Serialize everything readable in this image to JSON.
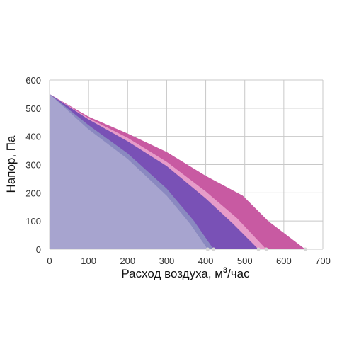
{
  "chart_data": {
    "type": "area",
    "xlabel": "Расход воздуха, м³/час",
    "xlabel_main": "Расход воздуха, м",
    "xlabel_sup": "3",
    "xlabel_tail": "/час",
    "ylabel": "Напор, Па",
    "xlim": [
      0,
      700
    ],
    "ylim": [
      0,
      600
    ],
    "x_ticks": [
      0,
      100,
      200,
      300,
      400,
      500,
      600,
      700
    ],
    "y_ticks": [
      0,
      100,
      200,
      300,
      400,
      500,
      600
    ],
    "grid": true,
    "series": [
      {
        "color": "#c85aa2",
        "points": [
          [
            0,
            550
          ],
          [
            100,
            470
          ],
          [
            200,
            410
          ],
          [
            300,
            345
          ],
          [
            400,
            260
          ],
          [
            495,
            190
          ],
          [
            560,
            100
          ],
          [
            655,
            0
          ]
        ]
      },
      {
        "color": "#e79cc9",
        "points": [
          [
            0,
            550
          ],
          [
            100,
            465
          ],
          [
            200,
            395
          ],
          [
            300,
            310
          ],
          [
            400,
            205
          ],
          [
            480,
            110
          ],
          [
            555,
            0
          ]
        ]
      },
      {
        "color": "#7951b6",
        "points": [
          [
            0,
            550
          ],
          [
            100,
            460
          ],
          [
            200,
            383
          ],
          [
            300,
            295
          ],
          [
            400,
            180
          ],
          [
            470,
            90
          ],
          [
            535,
            0
          ]
        ]
      },
      {
        "color": "#8a89c0",
        "points": [
          [
            0,
            550
          ],
          [
            100,
            440
          ],
          [
            200,
            340
          ],
          [
            300,
            215
          ],
          [
            370,
            100
          ],
          [
            420,
            0
          ]
        ]
      },
      {
        "color": "#a7a4cf",
        "points": [
          [
            0,
            550
          ],
          [
            100,
            425
          ],
          [
            200,
            320
          ],
          [
            300,
            190
          ],
          [
            360,
            90
          ],
          [
            405,
            0
          ]
        ]
      }
    ]
  }
}
